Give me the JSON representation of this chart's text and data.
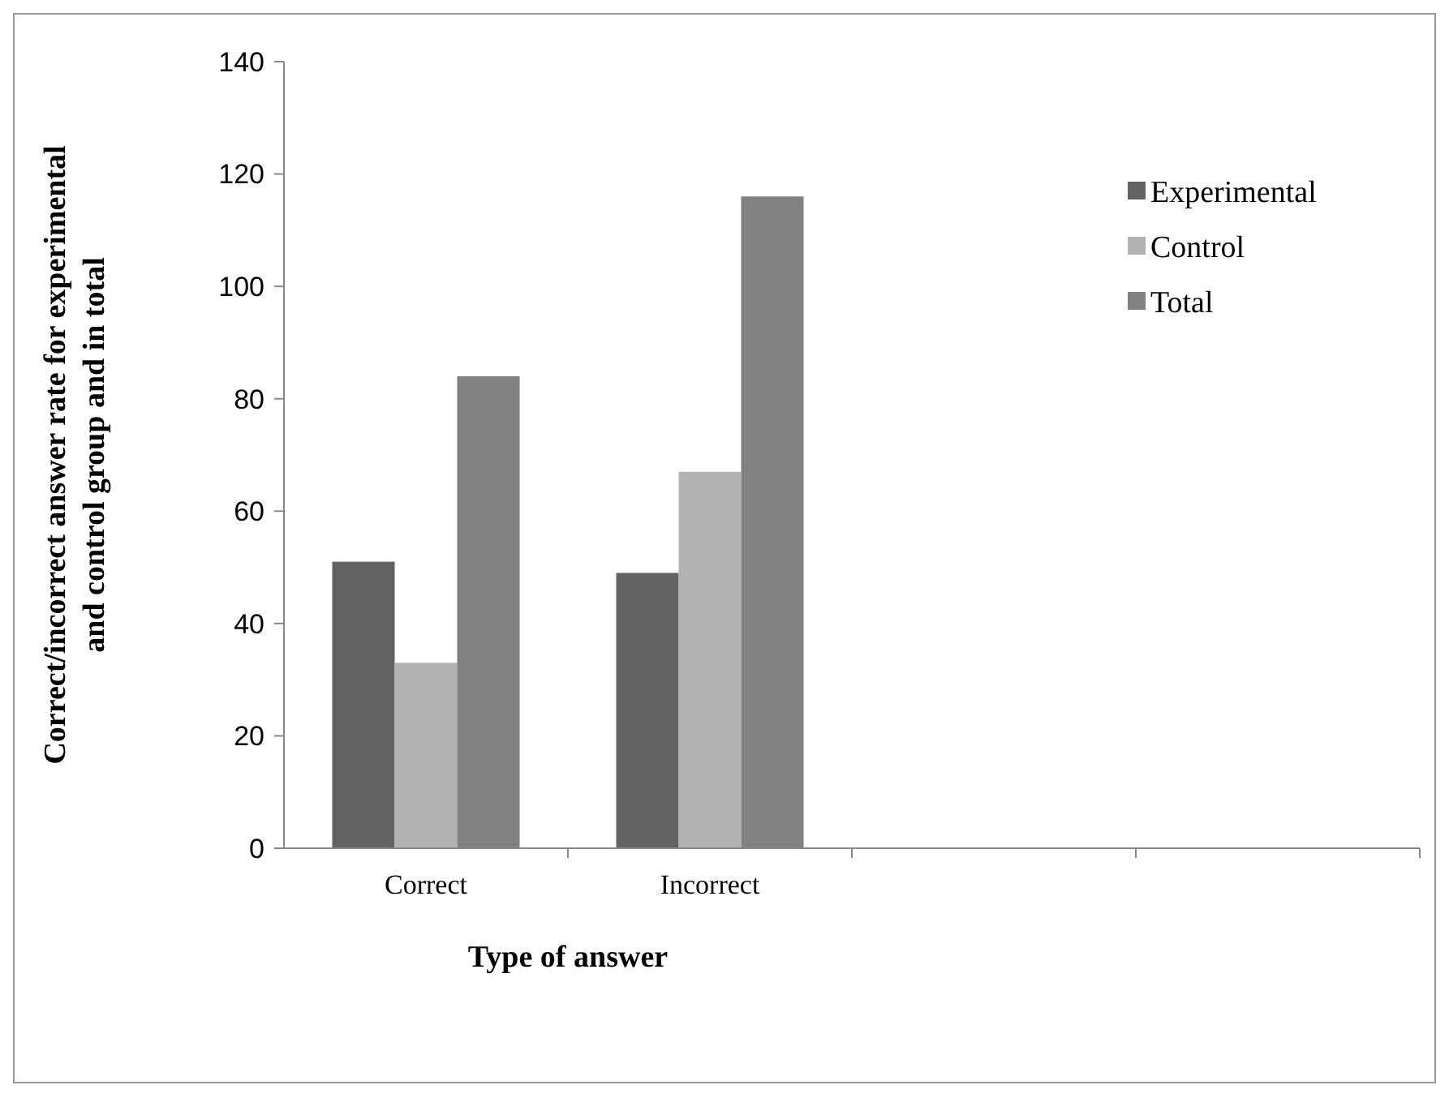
{
  "chart_data": {
    "type": "bar",
    "xlabel": "Type of answer",
    "ylabel": "Correct/incorrect answer rate for experimental and control group and in total",
    "categories": [
      "Correct",
      "Incorrect",
      null,
      null
    ],
    "series": [
      {
        "name": "Experimental",
        "color": "#626262",
        "values": [
          51,
          49,
          null,
          null
        ]
      },
      {
        "name": "Control",
        "color": "#b2b2b2",
        "values": [
          33,
          67,
          null,
          null
        ]
      },
      {
        "name": "Total",
        "color": "#818181",
        "values": [
          84,
          116,
          null,
          null
        ]
      }
    ],
    "ylim": [
      0,
      140
    ],
    "yticks": [
      0,
      20,
      40,
      60,
      80,
      100,
      120,
      140
    ],
    "grid": false,
    "legend": "top right"
  }
}
